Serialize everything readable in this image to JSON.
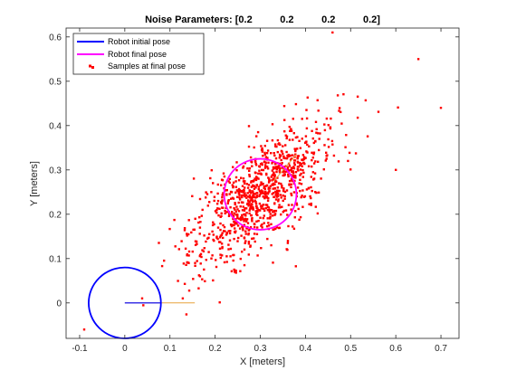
{
  "chart_data": {
    "type": "scatter",
    "title": "Noise Parameters: [0.2          0.2          0.2          0.2]",
    "xlabel": "X [meters]",
    "ylabel": "Y [meters]",
    "xlim": [
      -0.13,
      0.74
    ],
    "ylim": [
      -0.08,
      0.62
    ],
    "xticks": [
      -0.1,
      0,
      0.1,
      0.2,
      0.3,
      0.4,
      0.5,
      0.6,
      0.7
    ],
    "yticks": [
      0,
      0.1,
      0.2,
      0.3,
      0.4,
      0.5,
      0.6
    ],
    "xtick_labels": [
      "-0.1",
      "0",
      "0.1",
      "0.2",
      "0.3",
      "0.4",
      "0.5",
      "0.6",
      "0.7"
    ],
    "ytick_labels": [
      "0",
      "0.1",
      "0.2",
      "0.3",
      "0.4",
      "0.5",
      "0.6"
    ],
    "grid": false,
    "legend_position": "top-left",
    "legend": [
      "Robot initial pose",
      "Robot final pose",
      "Samples at final pose"
    ],
    "initial_pose": {
      "x": 0.0,
      "y": 0.0,
      "radius": 0.08,
      "color": "#0000ff",
      "heading_end": [
        0.155,
        0.0
      ],
      "heading_color": "#e8a33d"
    },
    "final_pose": {
      "x": 0.3,
      "y": 0.245,
      "radius": 0.08,
      "color": "#ff00ff",
      "heading_color": "#e8a33d"
    },
    "samples": {
      "color": "#ff0000",
      "count": 1000,
      "center": [
        0.3,
        0.245
      ],
      "notable_points": [
        [
          -0.09,
          -0.06
        ],
        [
          0.46,
          0.61
        ],
        [
          0.65,
          0.55
        ],
        [
          0.7,
          0.44
        ],
        [
          0.6,
          0.3
        ]
      ]
    }
  }
}
